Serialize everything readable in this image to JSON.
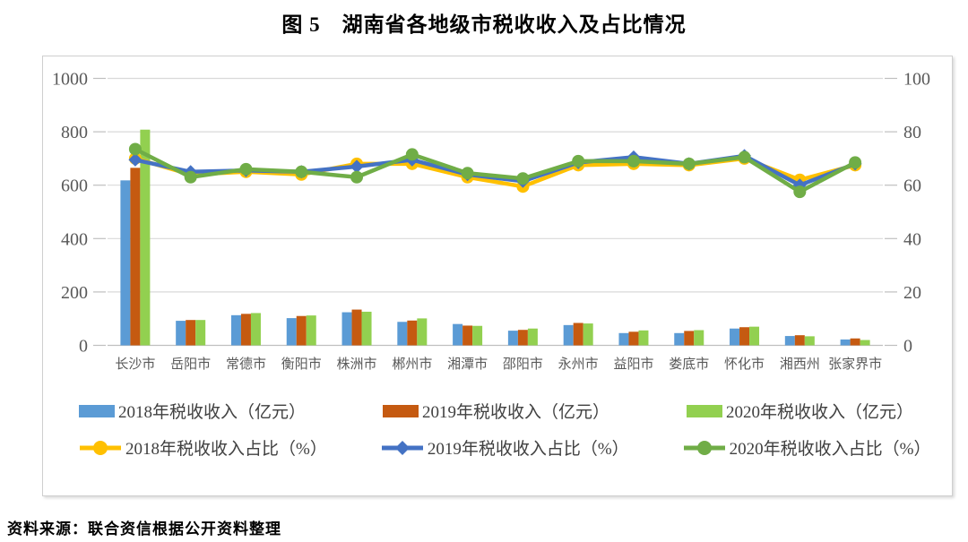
{
  "title": "图 5　湖南省各地级市税收收入及占比情况",
  "source_note": "资料来源：联合资信根据公开资料整理",
  "chart_data": {
    "type": "combo-bar-line",
    "title": "图 5　湖南省各地级市税收收入及占比情况",
    "categories": [
      "长沙市",
      "岳阳市",
      "常德市",
      "衡阳市",
      "株洲市",
      "郴州市",
      "湘潭市",
      "邵阳市",
      "永州市",
      "益阳市",
      "娄底市",
      "怀化市",
      "湘西州",
      "张家界市"
    ],
    "bar_series": [
      {
        "name": "2018年税收收入（亿元）",
        "color": "#5B9BD5",
        "axis": "left",
        "values": [
          618,
          92,
          113,
          102,
          124,
          88,
          80,
          55,
          76,
          46,
          46,
          63,
          35,
          22
        ]
      },
      {
        "name": "2019年税收收入（亿元）",
        "color": "#C55A11",
        "axis": "left",
        "values": [
          665,
          95,
          118,
          110,
          134,
          93,
          74,
          58,
          84,
          51,
          54,
          68,
          38,
          26
        ]
      },
      {
        "name": "2020年税收收入（亿元）",
        "color": "#92D050",
        "axis": "left",
        "values": [
          808,
          95,
          121,
          112,
          126,
          101,
          73,
          63,
          82,
          56,
          57,
          70,
          34,
          20
        ]
      }
    ],
    "line_series": [
      {
        "name": "2018年税收收入占比（%）",
        "color": "#FFC000",
        "marker": "circle",
        "axis": "right",
        "values": [
          70,
          64,
          65,
          64,
          68,
          68,
          63,
          59.5,
          67.5,
          68,
          67.5,
          70,
          62,
          67.5
        ]
      },
      {
        "name": "2019年税收收入占比（%）",
        "color": "#4472C4",
        "marker": "diamond",
        "axis": "right",
        "values": [
          69.5,
          65,
          65.5,
          65,
          67,
          69.5,
          64,
          61.5,
          68.5,
          70.5,
          68,
          71,
          60,
          68
        ]
      },
      {
        "name": "2020年税收收入占比（%）",
        "color": "#70AD47",
        "marker": "circle",
        "axis": "right",
        "values": [
          73.5,
          63,
          66,
          65,
          63,
          71.5,
          64.5,
          62.5,
          69,
          69,
          68,
          70.5,
          57.5,
          68.5
        ]
      }
    ],
    "left_axis": {
      "min": 0,
      "max": 1000,
      "step": 200,
      "tick_labels": [
        "0",
        "200",
        "400",
        "600",
        "800",
        "1000"
      ]
    },
    "right_axis": {
      "min": 0,
      "max": 100,
      "step": 20,
      "tick_labels": [
        "0",
        "20",
        "40",
        "60",
        "80",
        "100"
      ]
    },
    "grid": true,
    "legend_position": "bottom"
  },
  "style_colors": {
    "gridline": "#D9D9D9",
    "baseline": "#BFBFBF",
    "tick": "#BFBFBF",
    "axis_text": "#595959",
    "legend_text": "#404040"
  }
}
